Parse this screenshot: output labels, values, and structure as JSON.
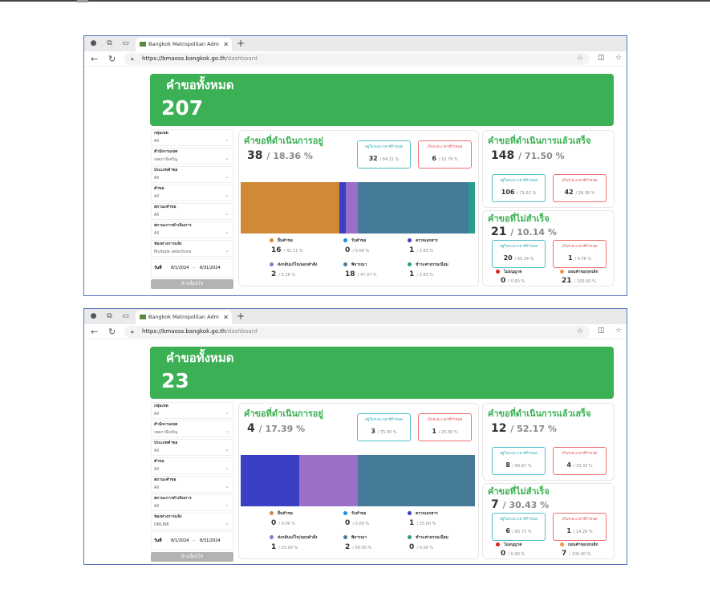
{
  "browser": {
    "tab_title": "Bangkok Metropolitan Administra",
    "url_host": "https://bmaoss.bangkok.go.th",
    "url_path": "/dashboard"
  },
  "labels": {
    "total_title": "คำขอทั้งหมด",
    "in_progress_title": "คำขอที่ดำเนินการอยู่",
    "completed_title": "คำขอที่ดำเนินการแล้วเสร็จ",
    "failed_title": "คำขอที่ไม่สำเร็จ",
    "within_time": "อยู่ในระยะเวลาที่กำหนด",
    "over_time": "เกินระยะเวลาที่กำหนด",
    "date_label": "วันที่",
    "clear_button": "ล้างเงื่อนไข",
    "not_allowed": "ไม่อนุญาต",
    "cancelled": "ถอนคำขอ/ยกเลิก"
  },
  "filter_labels": [
    "กลุ่มเขต",
    "สำนักงานเขต",
    "ประเภทคำขอ",
    "คำขอ",
    "สถานะคำขอ",
    "สถานะการดำเนินการ",
    "ช่องทางการแจ้ง"
  ],
  "status_names": [
    "ยื่นคำขอ",
    "รับคำขอ",
    "ตรวจเอกสาร",
    "ส่งกลับแก้ไข/ออกคำสั่ง",
    "พิจารณา",
    "ชำระค่าธรรมเนียม"
  ],
  "status_colors": [
    "#d08a35",
    "#1a8fe0",
    "#3b3fc4",
    "#9b6fc8",
    "#457a98",
    "#2a9d8a"
  ],
  "dashboards": [
    {
      "total": "207",
      "filters": [
        "All",
        "เขตภาษีเจริญ",
        "All",
        "All",
        "All",
        "All",
        "Multiple selections"
      ],
      "date_from": "8/1/2024",
      "date_to": "8/31/2024",
      "in_progress": {
        "count": "38",
        "pct": "/ 18.36 %",
        "within": "32",
        "within_pct": "/ 84.21 %",
        "over": "6",
        "over_pct": "/ 15.79 %",
        "statuses": [
          {
            "v": 16,
            "p": "/ 42.11 %"
          },
          {
            "v": 0,
            "p": "/ 0.00 %"
          },
          {
            "v": 1,
            "p": "/ 2.63 %"
          },
          {
            "v": 2,
            "p": "/ 5.26 %"
          },
          {
            "v": 18,
            "p": "/ 47.37 %"
          },
          {
            "v": 1,
            "p": "/ 2.63 %"
          }
        ]
      },
      "completed": {
        "count": "148",
        "pct": "/ 71.50 %",
        "within": "106",
        "within_pct": "/ 71.62 %",
        "over": "42",
        "over_pct": "/ 28.38 %"
      },
      "failed": {
        "count": "21",
        "pct": "/ 10.14 %",
        "within": "20",
        "within_pct": "/ 95.24 %",
        "over": "1",
        "over_pct": "/ 4.76 %",
        "not_allowed": "0",
        "not_allowed_pct": "/ 0.00 %",
        "cancelled": "21",
        "cancelled_pct": "/ 100.00 %"
      }
    },
    {
      "total": "23",
      "filters": [
        "All",
        "เขตภาษีเจริญ",
        "All",
        "All",
        "All",
        "All",
        "ONLINE"
      ],
      "date_from": "8/1/2024",
      "date_to": "8/31/2024",
      "in_progress": {
        "count": "4",
        "pct": "/ 17.39 %",
        "within": "3",
        "within_pct": "/ 75.00 %",
        "over": "1",
        "over_pct": "/ 25.00 %",
        "statuses": [
          {
            "v": 0,
            "p": "/ 0.00 %"
          },
          {
            "v": 0,
            "p": "/ 0.00 %"
          },
          {
            "v": 1,
            "p": "/ 25.00 %"
          },
          {
            "v": 1,
            "p": "/ 25.00 %"
          },
          {
            "v": 2,
            "p": "/ 50.00 %"
          },
          {
            "v": 0,
            "p": "/ 0.00 %"
          }
        ]
      },
      "completed": {
        "count": "12",
        "pct": "/ 52.17 %",
        "within": "8",
        "within_pct": "/ 66.67 %",
        "over": "4",
        "over_pct": "/ 33.33 %"
      },
      "failed": {
        "count": "7",
        "pct": "/ 30.43 %",
        "within": "6",
        "within_pct": "/ 85.71 %",
        "over": "1",
        "over_pct": "/ 14.29 %",
        "not_allowed": "0",
        "not_allowed_pct": "/ 0.00 %",
        "cancelled": "7",
        "cancelled_pct": "/ 100.00 %"
      }
    }
  ]
}
